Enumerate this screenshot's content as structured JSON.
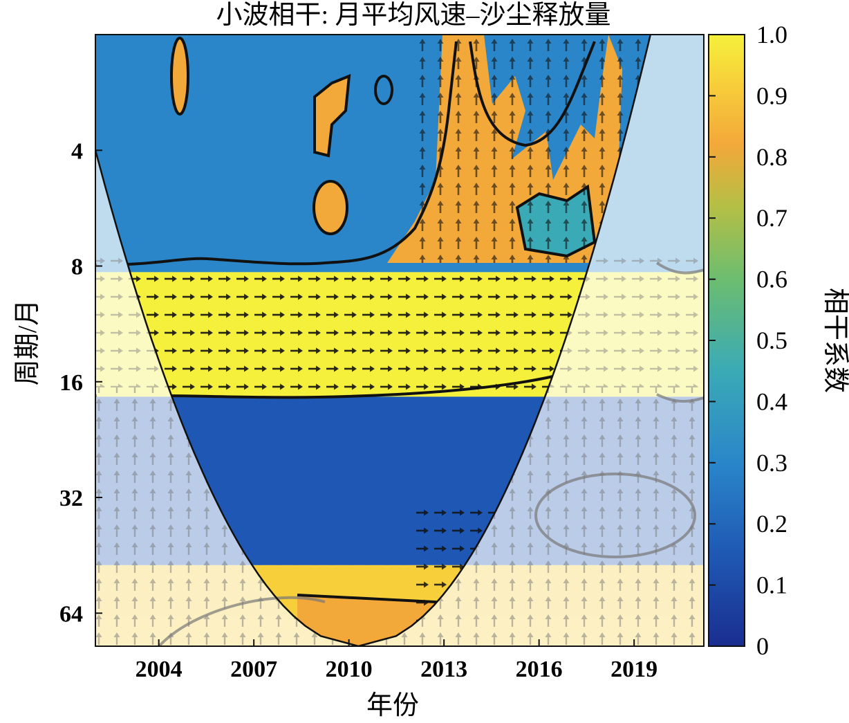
{
  "chart_data": {
    "type": "heatmap",
    "title": "小波相干: 月平均风速–沙尘释放量",
    "xlabel": "年份",
    "ylabel": "周期/月",
    "colorbar_label": "相干系数",
    "x_ticks": [
      "2004",
      "2007",
      "2010",
      "2013",
      "2016",
      "2019"
    ],
    "x_tick_values": [
      2004,
      2007,
      2010,
      2013,
      2016,
      2019
    ],
    "xlim": [
      2002.0,
      2021.2
    ],
    "y_ticks": [
      "4",
      "8",
      "16",
      "32",
      "64"
    ],
    "y_tick_values": [
      4,
      8,
      16,
      32,
      64
    ],
    "ylim": [
      2,
      78
    ],
    "y_scale": "log2",
    "colorbar_ticks": [
      "1.0",
      "0.9",
      "0.8",
      "0.7",
      "0.6",
      "0.5",
      "0.4",
      "0.3",
      "0.2",
      "0.1",
      "0"
    ],
    "colorbar_range": [
      0,
      1
    ],
    "colormap": [
      "#1a2e8f",
      "#1f6fc2",
      "#35a0c8",
      "#4fbf9a",
      "#8cc455",
      "#d6be3a",
      "#f4a73a",
      "#f6e33b"
    ],
    "bands": [
      {
        "period_range": [
          2,
          8.3
        ],
        "coherence": 0.25,
        "note_region": "high-frequency, mostly low coherence"
      },
      {
        "period_range": [
          8.3,
          17.5
        ],
        "coherence": 0.95,
        "arrow_direction": "right"
      },
      {
        "period_range": [
          17.5,
          48
        ],
        "coherence": 0.15
      },
      {
        "period_range": [
          48,
          78
        ],
        "coherence": 0.85,
        "arrow_direction": "right"
      }
    ],
    "cone_of_influence": true,
    "phase_arrows": true
  }
}
